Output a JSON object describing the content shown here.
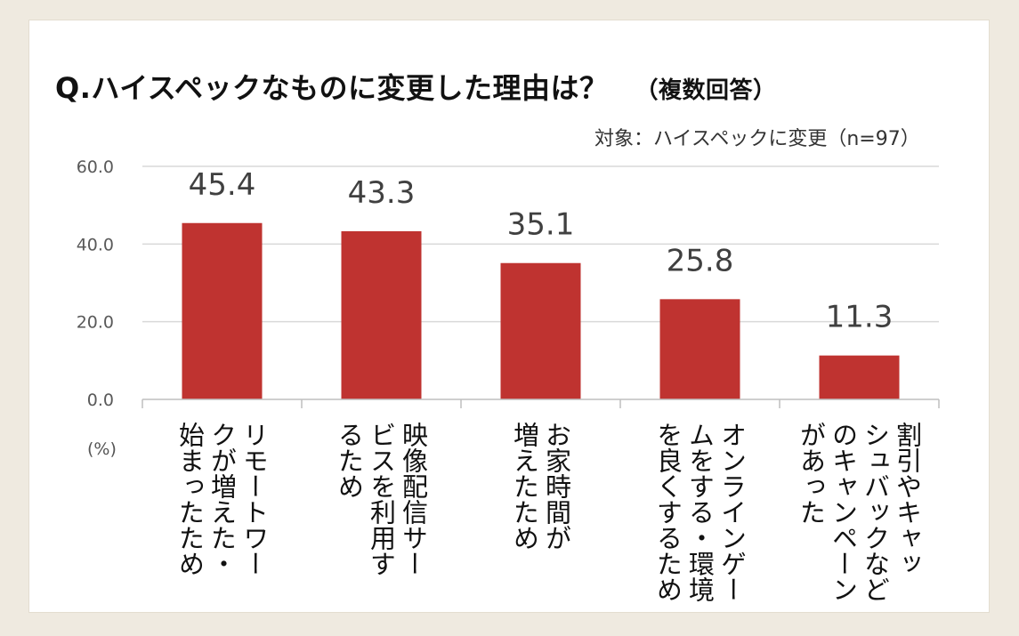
{
  "chart_data": {
    "type": "bar",
    "title": "Q.ハイスペックなものに変更した理由は？",
    "title_note": "（複数回答）",
    "subtitle": "対象：ハイスペックに変更（n=97）",
    "ylabel": "(%)",
    "ylim": [
      0,
      60
    ],
    "yticks": [
      "0.0",
      "20.0",
      "40.0",
      "60.0"
    ],
    "grid": true,
    "bar_color": "#bf3330",
    "categories": [
      "リモートワークが増えた・始まったため",
      "映像配信サービスを利用するため",
      "お家時間が増えたため",
      "オンラインゲームをする・環境を良くするため",
      "割引やキャッシュバックなどのキャンペーンがあった"
    ],
    "category_lines": [
      [
        "リモートワー",
        "クが増えた・",
        "始まったため"
      ],
      [
        "映像配信サー",
        "ビスを利用す",
        "るため"
      ],
      [
        "お家時間が",
        "増えたため"
      ],
      [
        "オンラインゲー",
        "ムをする・環境",
        "を良くするため"
      ],
      [
        "割引やキャッ",
        "シュバックなど",
        "のキャンペーン",
        "があった"
      ]
    ],
    "values": [
      45.4,
      43.3,
      35.1,
      25.8,
      11.3
    ],
    "value_labels": [
      "45.4",
      "43.3",
      "35.1",
      "25.8",
      "11.3"
    ]
  }
}
